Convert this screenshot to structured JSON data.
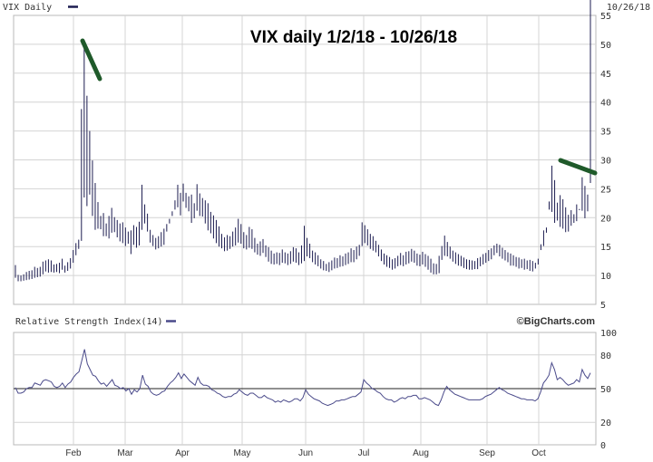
{
  "chart_data": [
    {
      "type": "ohlc",
      "panel": "main",
      "label": "VIX Daily",
      "date_label": "10/26/18",
      "annotation": "VIX daily 1/2/18 - 10/26/18",
      "y_ticks": [
        5,
        10,
        15,
        20,
        25,
        30,
        35,
        40,
        45,
        50,
        55
      ],
      "ylim": [
        5,
        55
      ],
      "x_ticks": [
        "Feb",
        "Mar",
        "Apr",
        "May",
        "Jun",
        "Jul",
        "Aug",
        "Sep",
        "Oct"
      ],
      "grid": true,
      "line_color": "#1c1c50",
      "highs": [
        11.8,
        10.1,
        10.0,
        10.2,
        10.6,
        10.8,
        10.9,
        11.5,
        11.3,
        11.5,
        12.4,
        12.6,
        12.8,
        12.6,
        11.9,
        12.0,
        12.2,
        12.9,
        11.7,
        12.3,
        13.0,
        14.4,
        15.6,
        16.2,
        38.8,
        50.3,
        41.1,
        35.0,
        29.9,
        26.0,
        22.7,
        20.3,
        20.8,
        19.0,
        20.3,
        21.7,
        20.1,
        19.6,
        19.0,
        19.2,
        18.3,
        17.6,
        17.8,
        18.7,
        18.4,
        19.3,
        25.7,
        22.3,
        20.7,
        17.9,
        17.0,
        16.5,
        16.8,
        17.5,
        18.1,
        18.9,
        19.8,
        21.1,
        23.0,
        25.7,
        24.3,
        25.9,
        24.3,
        23.7,
        24.0,
        22.5,
        25.8,
        24.2,
        23.4,
        23.0,
        22.5,
        21.0,
        20.4,
        19.6,
        18.5,
        17.2,
        16.6,
        17.0,
        16.8,
        17.6,
        18.3,
        19.8,
        18.9,
        17.5,
        17.0,
        18.4,
        18.0,
        16.5,
        15.5,
        15.9,
        16.3,
        15.2,
        14.9,
        14.3,
        13.8,
        14.0,
        13.9,
        14.5,
        14.0,
        13.8,
        14.2,
        14.9,
        14.7,
        14.0,
        15.2,
        18.6,
        16.5,
        15.5,
        14.3,
        14.0,
        13.5,
        12.8,
        12.5,
        12.0,
        12.3,
        12.6,
        13.1,
        13.0,
        13.5,
        13.3,
        13.8,
        14.0,
        14.7,
        14.4,
        15.0,
        15.3,
        19.2,
        18.7,
        18.0,
        17.2,
        16.8,
        16.0,
        15.3,
        14.5,
        13.8,
        13.5,
        13.2,
        12.8,
        13.0,
        13.4,
        13.9,
        13.5,
        14.1,
        14.2,
        14.6,
        14.3,
        13.8,
        13.6,
        14.1,
        13.7,
        13.4,
        12.9,
        12.1,
        12.0,
        13.4,
        15.1,
        16.9,
        15.8,
        15.0,
        14.3,
        14.0,
        13.7,
        13.4,
        13.1,
        12.8,
        12.7,
        12.6,
        12.5,
        13.0,
        13.2,
        13.7,
        13.9,
        14.4,
        14.7,
        15.2,
        15.5,
        15.3,
        14.8,
        14.4,
        14.0,
        13.8,
        13.5,
        13.2,
        13.1,
        12.8,
        12.9,
        12.6,
        12.7,
        12.5,
        12.2,
        12.9,
        15.4,
        17.8,
        18.3,
        21.4,
        29.0,
        26.5,
        22.6,
        23.9,
        23.2,
        21.8,
        20.5,
        21.3,
        20.6,
        22.3,
        21.5,
        27.0,
        25.5,
        24.0,
        26.0
      ],
      "lows": [
        9.6,
        9.0,
        9.0,
        9.1,
        9.2,
        9.3,
        9.4,
        9.6,
        9.7,
        9.8,
        10.2,
        10.7,
        10.5,
        10.6,
        10.5,
        10.6,
        10.4,
        11.0,
        10.5,
        10.8,
        11.2,
        12.2,
        13.5,
        14.6,
        16.0,
        23.5,
        22.0,
        24.0,
        20.3,
        17.9,
        18.1,
        18.0,
        16.8,
        16.8,
        16.4,
        17.4,
        17.5,
        16.6,
        15.9,
        15.6,
        15.1,
        15.5,
        13.7,
        15.3,
        14.8,
        15.2,
        17.9,
        19.0,
        17.6,
        15.7,
        15.1,
        14.5,
        14.7,
        15.0,
        15.3,
        17.6,
        19.0,
        20.3,
        21.4,
        21.8,
        20.4,
        22.8,
        21.7,
        21.1,
        19.1,
        19.9,
        21.2,
        20.3,
        20.2,
        19.0,
        17.8,
        17.3,
        16.4,
        15.6,
        15.0,
        14.7,
        14.2,
        14.3,
        14.6,
        15.0,
        15.2,
        15.7,
        15.5,
        14.7,
        14.5,
        14.8,
        14.6,
        14.0,
        13.6,
        13.4,
        13.9,
        13.2,
        12.4,
        12.0,
        11.9,
        12.0,
        11.8,
        12.2,
        12.1,
        11.8,
        12.0,
        12.4,
        12.2,
        11.8,
        12.1,
        12.5,
        13.3,
        13.0,
        12.3,
        11.9,
        11.6,
        11.2,
        10.9,
        10.8,
        10.6,
        10.9,
        11.2,
        11.3,
        11.5,
        11.6,
        11.8,
        12.0,
        12.3,
        12.3,
        12.8,
        13.4,
        15.1,
        15.6,
        15.2,
        14.6,
        14.3,
        14.0,
        13.3,
        12.5,
        11.9,
        11.5,
        11.3,
        11.0,
        11.2,
        11.6,
        11.8,
        11.6,
        11.9,
        12.1,
        12.4,
        12.2,
        11.7,
        11.6,
        11.9,
        11.5,
        11.0,
        10.5,
        10.2,
        10.2,
        10.4,
        12.7,
        13.4,
        13.3,
        12.9,
        12.4,
        12.0,
        11.7,
        11.6,
        11.3,
        11.1,
        11.0,
        11.0,
        11.1,
        11.1,
        11.6,
        11.9,
        12.2,
        12.5,
        12.8,
        13.5,
        13.9,
        13.3,
        12.9,
        12.6,
        12.3,
        11.7,
        11.7,
        11.5,
        11.2,
        11.3,
        11.0,
        11.1,
        10.8,
        10.7,
        11.2,
        11.9,
        14.4,
        15.1,
        17.4,
        22.8,
        21.0,
        19.1,
        19.5,
        18.4,
        18.1,
        17.5,
        17.6,
        18.6,
        19.1,
        19.4,
        21.3,
        21.2,
        19.9,
        21.1
      ]
    },
    {
      "type": "line",
      "panel": "rsi",
      "label": "Relative Strength Index(14)",
      "y_ticks": [
        0,
        20,
        50,
        80,
        100
      ],
      "ylim": [
        0,
        100
      ],
      "reference_line": 50,
      "line_color": "#4a4a8a",
      "values": [
        51,
        46,
        46,
        47,
        50,
        51,
        51,
        55,
        54,
        53,
        57,
        58,
        57,
        56,
        52,
        51,
        52,
        55,
        51,
        54,
        56,
        60,
        63,
        65,
        75,
        85,
        72,
        67,
        62,
        61,
        57,
        54,
        55,
        52,
        55,
        58,
        53,
        52,
        50,
        51,
        48,
        50,
        45,
        49,
        47,
        50,
        62,
        54,
        52,
        47,
        45,
        44,
        45,
        47,
        48,
        52,
        55,
        57,
        60,
        64,
        59,
        63,
        60,
        57,
        55,
        53,
        60,
        55,
        53,
        53,
        52,
        49,
        48,
        46,
        45,
        43,
        42,
        43,
        43,
        45,
        46,
        49,
        47,
        45,
        44,
        46,
        46,
        44,
        42,
        42,
        44,
        42,
        41,
        40,
        38,
        39,
        38,
        40,
        39,
        38,
        39,
        41,
        41,
        39,
        42,
        49,
        45,
        43,
        41,
        40,
        39,
        37,
        36,
        35,
        36,
        37,
        39,
        39,
        40,
        40,
        41,
        42,
        43,
        43,
        45,
        47,
        58,
        55,
        53,
        50,
        49,
        47,
        46,
        43,
        41,
        40,
        40,
        38,
        39,
        41,
        42,
        41,
        43,
        43,
        44,
        44,
        41,
        41,
        42,
        41,
        40,
        38,
        36,
        35,
        40,
        47,
        52,
        49,
        47,
        45,
        44,
        43,
        42,
        41,
        40,
        40,
        40,
        40,
        40,
        41,
        43,
        44,
        45,
        47,
        49,
        51,
        49,
        48,
        46,
        45,
        44,
        43,
        42,
        41,
        41,
        40,
        40,
        40,
        39,
        41,
        47,
        55,
        58,
        62,
        73,
        67,
        58,
        60,
        58,
        55,
        53,
        54,
        55,
        58,
        56,
        67,
        62,
        59,
        64
      ]
    }
  ],
  "credit": "©BigCharts.com"
}
